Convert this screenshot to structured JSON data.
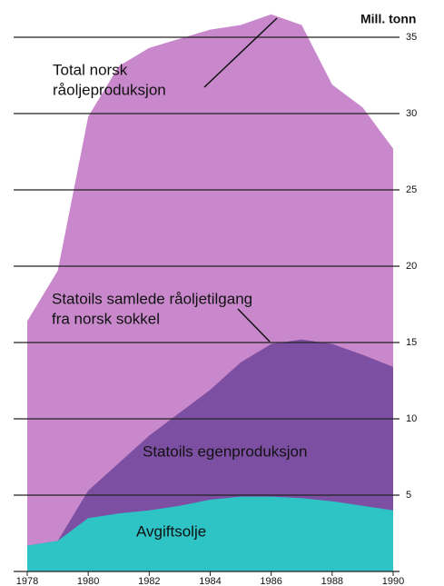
{
  "chart_data": {
    "type": "area",
    "y_axis_label": "Mill. tonn",
    "x": [
      1978,
      1979,
      1980,
      1981,
      1982,
      1983,
      1984,
      1985,
      1986,
      1987,
      1988,
      1989,
      1990
    ],
    "xlim": [
      1978,
      1990
    ],
    "xticks": [
      1978,
      1980,
      1982,
      1984,
      1986,
      1988,
      1990
    ],
    "ylim": [
      0,
      35
    ],
    "yticks": [
      5,
      10,
      15,
      20,
      25,
      30,
      35
    ],
    "grid": true,
    "series": [
      {
        "color": "#c888cb",
        "values": [
          16.4,
          19.7,
          29.8,
          33.1,
          34.3,
          34.9,
          35.5,
          35.8,
          36.5,
          35.8,
          31.9,
          30.4,
          27.7
        ]
      },
      {
        "color": "#7d4fa3",
        "values": [
          1.7,
          2.0,
          5.3,
          7.1,
          8.9,
          10.4,
          11.9,
          13.7,
          14.9,
          15.2,
          14.9,
          14.2,
          13.4
        ]
      },
      {
        "color": "#2ec4c6",
        "values": [
          1.7,
          2.0,
          3.5,
          3.8,
          4.0,
          4.3,
          4.7,
          4.9,
          4.9,
          4.8,
          4.6,
          4.3,
          4.0
        ]
      }
    ],
    "annotations": [
      {
        "lines": [
          "Total norsk",
          "råoljeproduksjon"
        ]
      },
      {
        "lines": [
          "Statoils samlede råoljetilgang",
          "fra norsk sokkel"
        ]
      },
      {
        "lines": [
          "Statoils egenproduksjon"
        ]
      },
      {
        "lines": [
          "Avgiftsolje"
        ]
      }
    ]
  }
}
